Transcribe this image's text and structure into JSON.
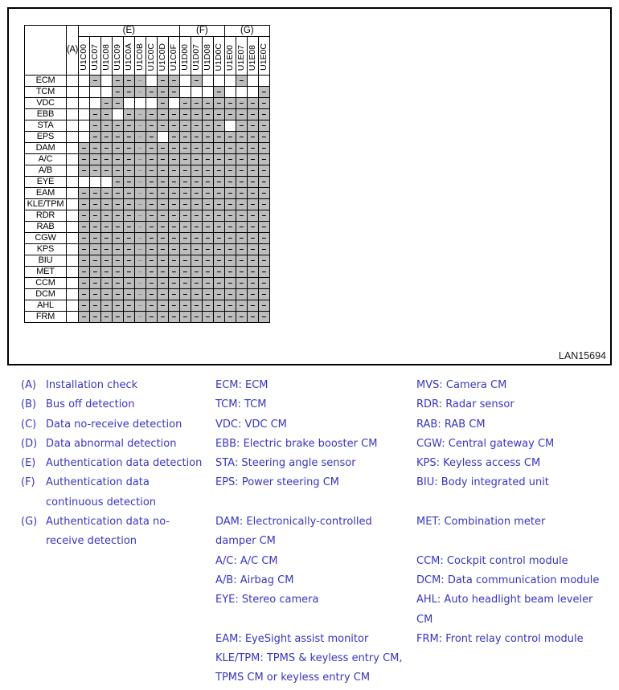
{
  "figure": {
    "code": "LAN15694",
    "matrix": {
      "a_header": "(A)",
      "groups": [
        {
          "label": "(E)",
          "span": 9
        },
        {
          "label": "(F)",
          "span": 4
        },
        {
          "label": "(G)",
          "span": 4
        }
      ],
      "columns": [
        "U1C00",
        "U1C07",
        "U1C08",
        "U1C09",
        "U1C0A",
        "U1C0B",
        "U1C0C",
        "U1C0D",
        "U1C0F",
        "U1D00",
        "U1D07",
        "U1D08",
        "U1D0C",
        "U1E00",
        "U1E07",
        "U1E08",
        "U1E0C"
      ],
      "mark": "–",
      "light_mark_column": "U1C0B",
      "rows": [
        {
          "label": "ECM",
          "a": "",
          "cells": [
            0,
            1,
            0,
            1,
            1,
            1,
            0,
            1,
            1,
            0,
            1,
            0,
            0,
            0,
            1,
            0,
            0
          ]
        },
        {
          "label": "TCM",
          "a": "",
          "cells": [
            0,
            0,
            0,
            1,
            1,
            1,
            1,
            1,
            1,
            0,
            0,
            0,
            1,
            0,
            0,
            0,
            1
          ]
        },
        {
          "label": "VDC",
          "a": "",
          "cells": [
            0,
            0,
            1,
            1,
            0,
            0,
            0,
            1,
            0,
            1,
            1,
            1,
            1,
            1,
            1,
            1,
            1
          ]
        },
        {
          "label": "EBB",
          "a": "",
          "cells": [
            0,
            1,
            1,
            0,
            1,
            1,
            1,
            1,
            1,
            1,
            1,
            1,
            1,
            1,
            1,
            1,
            1
          ]
        },
        {
          "label": "STA",
          "a": "",
          "cells": [
            0,
            1,
            1,
            1,
            1,
            1,
            1,
            1,
            1,
            1,
            1,
            1,
            1,
            0,
            1,
            1,
            1
          ]
        },
        {
          "label": "EPS",
          "a": "",
          "cells": [
            0,
            1,
            1,
            1,
            1,
            1,
            1,
            0,
            1,
            1,
            1,
            1,
            1,
            1,
            1,
            1,
            1
          ]
        },
        {
          "label": "DAM",
          "a": "",
          "cells": [
            1,
            1,
            1,
            1,
            1,
            1,
            1,
            1,
            1,
            1,
            1,
            1,
            1,
            1,
            1,
            1,
            1
          ]
        },
        {
          "label": "A/C",
          "a": "",
          "cells": [
            1,
            1,
            1,
            1,
            1,
            1,
            1,
            1,
            1,
            1,
            1,
            1,
            1,
            1,
            1,
            1,
            1
          ]
        },
        {
          "label": "A/B",
          "a": "",
          "cells": [
            1,
            1,
            1,
            1,
            1,
            1,
            1,
            1,
            1,
            1,
            1,
            1,
            1,
            1,
            1,
            1,
            1
          ]
        },
        {
          "label": "EYE",
          "a": "",
          "cells": [
            0,
            0,
            0,
            1,
            1,
            1,
            1,
            1,
            1,
            1,
            1,
            1,
            1,
            1,
            1,
            1,
            1
          ]
        },
        {
          "label": "EAM",
          "a": "",
          "cells": [
            1,
            1,
            1,
            1,
            1,
            1,
            1,
            1,
            1,
            1,
            1,
            1,
            1,
            1,
            1,
            1,
            1
          ]
        },
        {
          "label": "KLE/TPM",
          "a": "",
          "cells": [
            1,
            1,
            1,
            1,
            1,
            1,
            1,
            1,
            1,
            1,
            1,
            1,
            1,
            1,
            1,
            1,
            1
          ]
        },
        {
          "label": "RDR",
          "a": "",
          "cells": [
            1,
            1,
            1,
            1,
            1,
            1,
            1,
            1,
            1,
            1,
            1,
            1,
            1,
            1,
            1,
            1,
            1
          ]
        },
        {
          "label": "RAB",
          "a": "",
          "cells": [
            1,
            1,
            1,
            1,
            1,
            1,
            1,
            1,
            1,
            1,
            1,
            1,
            1,
            1,
            1,
            1,
            1
          ]
        },
        {
          "label": "CGW",
          "a": "",
          "cells": [
            1,
            1,
            1,
            1,
            1,
            1,
            1,
            1,
            1,
            1,
            1,
            1,
            1,
            1,
            1,
            1,
            1
          ]
        },
        {
          "label": "KPS",
          "a": "",
          "cells": [
            1,
            1,
            1,
            1,
            1,
            1,
            1,
            1,
            1,
            1,
            1,
            1,
            1,
            1,
            1,
            1,
            1
          ]
        },
        {
          "label": "BIU",
          "a": "",
          "cells": [
            1,
            1,
            1,
            1,
            1,
            1,
            1,
            1,
            1,
            1,
            1,
            1,
            1,
            1,
            1,
            1,
            1
          ]
        },
        {
          "label": "MET",
          "a": "",
          "cells": [
            1,
            1,
            1,
            1,
            1,
            1,
            1,
            1,
            1,
            1,
            1,
            1,
            1,
            1,
            1,
            1,
            1
          ]
        },
        {
          "label": "CCM",
          "a": "",
          "cells": [
            1,
            1,
            1,
            1,
            1,
            1,
            1,
            1,
            1,
            1,
            1,
            1,
            1,
            1,
            1,
            1,
            1
          ]
        },
        {
          "label": "DCM",
          "a": "",
          "cells": [
            1,
            1,
            1,
            1,
            1,
            1,
            1,
            1,
            1,
            1,
            1,
            1,
            1,
            1,
            1,
            1,
            1
          ]
        },
        {
          "label": "AHL",
          "a": "",
          "cells": [
            1,
            1,
            1,
            1,
            1,
            1,
            1,
            1,
            1,
            1,
            1,
            1,
            1,
            1,
            1,
            1,
            1
          ]
        },
        {
          "label": "FRM",
          "a": "",
          "cells": [
            1,
            1,
            1,
            1,
            1,
            1,
            1,
            1,
            1,
            1,
            1,
            1,
            1,
            1,
            1,
            1,
            1
          ]
        }
      ]
    }
  },
  "legend": {
    "left": [
      {
        "marker": "(A)",
        "text": "Installation check"
      },
      {
        "marker": "(B)",
        "text": "Bus off detection"
      },
      {
        "marker": "(C)",
        "text": "Data no-receive detection"
      },
      {
        "marker": "(D)",
        "text": "Data abnormal detection"
      },
      {
        "marker": "(E)",
        "text": "Authentication data detection"
      },
      {
        "marker": "(F)",
        "text": "Authentication data"
      },
      {
        "marker": "",
        "text": "continuous detection"
      },
      {
        "marker": "(G)",
        "text": "Authentication data no-"
      },
      {
        "marker": "",
        "text": "receive detection"
      }
    ],
    "middle": [
      "ECM: ECM",
      "TCM: TCM",
      "VDC: VDC CM",
      "EBB: Electric brake booster CM",
      "STA: Steering angle sensor",
      "EPS: Power steering CM",
      "",
      "DAM: Electronically-controlled",
      "damper CM",
      "A/C: A/C CM",
      "A/B: Airbag CM",
      "EYE: Stereo camera",
      "",
      "EAM: EyeSight assist monitor",
      "KLE/TPM: TPMS & keyless entry CM,",
      "TPMS CM or keyless entry CM"
    ],
    "right": [
      "MVS: Camera CM",
      "RDR: Radar sensor",
      "RAB: RAB CM",
      "CGW: Central gateway CM",
      "KPS: Keyless access CM",
      "BIU: Body integrated unit",
      "",
      "MET: Combination meter",
      "",
      "CCM: Cockpit control module",
      "DCM: Data communication module",
      "AHL: Auto headlight beam leveler",
      "CM",
      "FRM: Front relay control module"
    ]
  },
  "colors": {
    "marked_cell_bg": "#bdbdbd",
    "legend_text": "#3836c0"
  }
}
